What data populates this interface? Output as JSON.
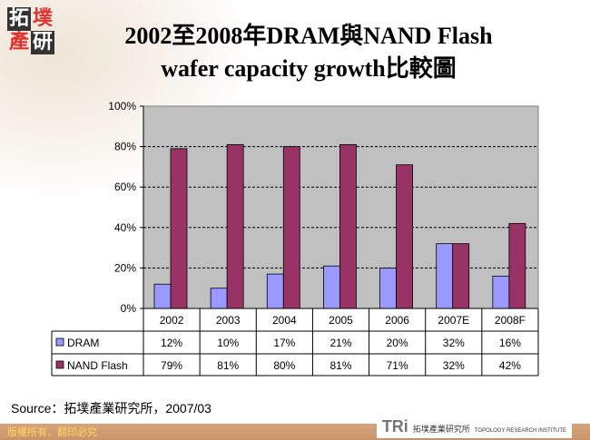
{
  "logo": {
    "chars": [
      "拓",
      "墣",
      "產",
      "研"
    ]
  },
  "title": {
    "line1": "2002至2008年DRAM與NAND Flash",
    "line2": "wafer capacity growth比較圖"
  },
  "source": "Source：拓墣產業研究所，2007/03",
  "footer": {
    "copyright": "版權所有．翻印必究",
    "brand": "TRi",
    "brand_cn": "拓墣產業研究所",
    "brand_en": "TOPOLOGY RESEARCH INSTITUTE"
  },
  "chart_data": {
    "type": "bar",
    "categories": [
      "2002",
      "2003",
      "2004",
      "2005",
      "2006",
      "2007E",
      "2008F"
    ],
    "series": [
      {
        "name": "DRAM",
        "values": [
          12,
          10,
          17,
          21,
          20,
          32,
          16
        ],
        "labels": [
          "12%",
          "10%",
          "17%",
          "21%",
          "20%",
          "32%",
          "16%"
        ],
        "color": "#9999ff"
      },
      {
        "name": "NAND Flash",
        "values": [
          79,
          81,
          80,
          81,
          71,
          32,
          42
        ],
        "labels": [
          "79%",
          "81%",
          "80%",
          "81%",
          "71%",
          "32%",
          "42%"
        ],
        "color": "#993366"
      }
    ],
    "yticks": [
      "0%",
      "20%",
      "40%",
      "60%",
      "80%",
      "100%"
    ],
    "ylim": [
      0,
      100
    ],
    "grid": true,
    "plot_bg": "#c0c0c0",
    "legend": "data-table"
  }
}
